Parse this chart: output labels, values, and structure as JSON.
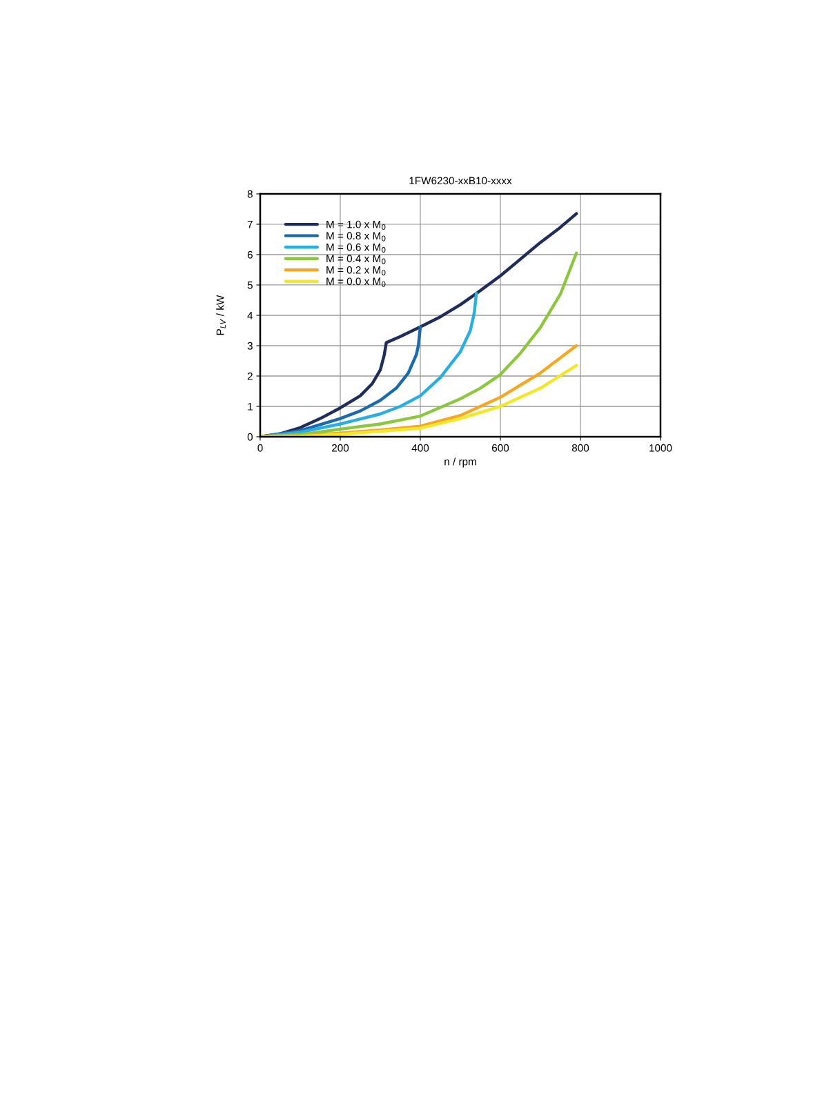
{
  "chart_data": {
    "type": "line",
    "title": "1FW6230-xxB10-xxxx",
    "xlabel": "n / rpm",
    "ylabel": "P$_{LV}$ / kW",
    "xlim": [
      0,
      1000
    ],
    "xticks": [
      0,
      200,
      400,
      600,
      800,
      1000
    ],
    "ylim": [
      0,
      8
    ],
    "yticks": [
      0,
      1,
      2,
      3,
      4,
      5,
      6,
      7,
      8
    ],
    "grid": true,
    "legend": "top left",
    "marker": "none",
    "line_style": "solid",
    "series": [
      {
        "name": "M = 1.0 x M$_{0}$",
        "color": "#1f2d5c",
        "x": [
          0,
          50,
          100,
          150,
          200,
          250,
          280,
          300,
          310,
          315,
          350,
          400,
          450,
          500,
          540,
          600,
          650,
          700,
          750,
          790
        ],
        "values": [
          0,
          0.1,
          0.3,
          0.6,
          0.95,
          1.35,
          1.75,
          2.2,
          2.7,
          3.1,
          3.3,
          3.62,
          3.95,
          4.35,
          4.72,
          5.3,
          5.85,
          6.4,
          6.9,
          7.35
        ]
      },
      {
        "name": "M = 0.8 x M$_{0}$",
        "color": "#1b6aad",
        "x": [
          0,
          100,
          200,
          250,
          300,
          340,
          370,
          390,
          395,
          400
        ],
        "values": [
          0,
          0.2,
          0.6,
          0.85,
          1.2,
          1.6,
          2.1,
          2.7,
          3.0,
          3.62
        ]
      },
      {
        "name": "M = 0.6 x M$_{0}$",
        "color": "#29aee0",
        "x": [
          0,
          100,
          200,
          300,
          350,
          400,
          450,
          500,
          525,
          535,
          540
        ],
        "values": [
          0,
          0.15,
          0.42,
          0.75,
          1.0,
          1.35,
          1.95,
          2.8,
          3.5,
          4.1,
          4.72
        ]
      },
      {
        "name": "M = 0.4 x M$_{0}$",
        "color": "#8dc63f",
        "x": [
          0,
          100,
          200,
          300,
          400,
          500,
          550,
          600,
          650,
          700,
          750,
          790
        ],
        "values": [
          0,
          0.07,
          0.25,
          0.42,
          0.68,
          1.25,
          1.6,
          2.05,
          2.75,
          3.6,
          4.7,
          6.05
        ]
      },
      {
        "name": "M = 0.2 x M$_{0}$",
        "color": "#f7a823",
        "x": [
          0,
          100,
          200,
          300,
          400,
          500,
          550,
          600,
          700,
          790
        ],
        "values": [
          0,
          0.03,
          0.12,
          0.22,
          0.35,
          0.7,
          1.0,
          1.3,
          2.1,
          3.0
        ]
      },
      {
        "name": "M = 0.0 x M$_{0}$",
        "color": "#f2e829",
        "x": [
          0,
          100,
          200,
          300,
          400,
          500,
          600,
          700,
          790
        ],
        "values": [
          0,
          0.01,
          0.08,
          0.18,
          0.28,
          0.6,
          1.0,
          1.6,
          2.35
        ]
      }
    ]
  }
}
